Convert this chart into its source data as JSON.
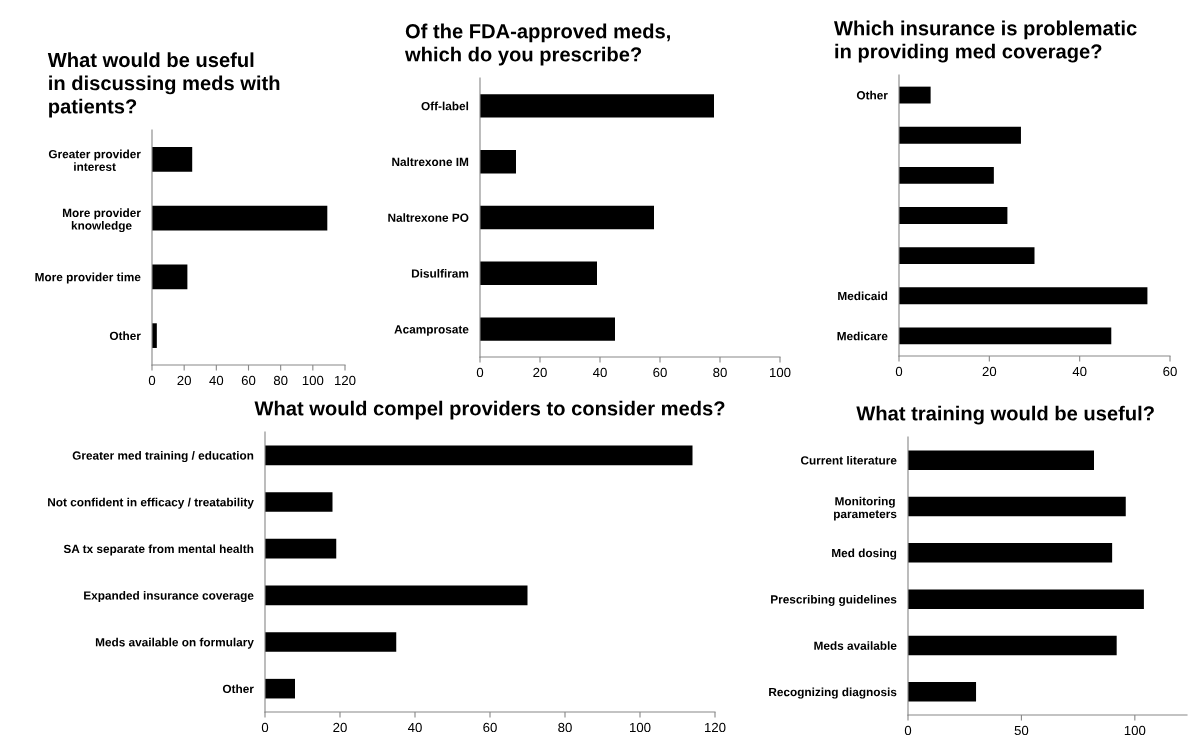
{
  "chart_data": [
    {
      "type": "bar",
      "orientation": "horizontal",
      "title": "What would be useful\nin discussing meds with\npatients?",
      "categories": [
        "Greater provider\ninterest",
        "More provider\nknowledge",
        "More provider time",
        "Other"
      ],
      "values": [
        25,
        109,
        22,
        3
      ],
      "color": "#000000",
      "xlim": [
        0,
        120
      ],
      "xticks": [
        0,
        20,
        40,
        60,
        80,
        100,
        120
      ],
      "grid": false
    },
    {
      "type": "bar",
      "orientation": "horizontal",
      "title": "Of the FDA-approved meds,\nwhich do you prescribe?",
      "categories": [
        "Off-label",
        "Naltrexone IM",
        "Naltrexone PO",
        "Disulfiram",
        "Acamprosate"
      ],
      "values": [
        78,
        12,
        58,
        39,
        45
      ],
      "color": "#000000",
      "xlim": [
        0,
        100
      ],
      "xticks": [
        0,
        20,
        40,
        60,
        80,
        100
      ],
      "grid": false
    },
    {
      "type": "bar",
      "orientation": "horizontal",
      "title": "Which insurance is problematic\nin providing med coverage?",
      "categories": [
        "Other",
        null,
        null,
        null,
        null,
        "Medicaid",
        "Medicare"
      ],
      "values": [
        7,
        27,
        21,
        24,
        30,
        55,
        47
      ],
      "color": "#000000",
      "xlim": [
        0,
        60
      ],
      "xticks": [
        0,
        20,
        40,
        60
      ],
      "grid": false
    },
    {
      "type": "bar",
      "orientation": "horizontal",
      "title": "What would compel providers to consider meds?",
      "categories": [
        "Greater med training / education",
        "Not confident in efficacy / treatability",
        "SA tx separate from mental health",
        "Expanded insurance coverage",
        "Meds available on formulary",
        "Other"
      ],
      "values": [
        114,
        18,
        19,
        70,
        35,
        8
      ],
      "color": "#000000",
      "xlim": [
        0,
        120
      ],
      "xticks": [
        0,
        20,
        40,
        60,
        80,
        100,
        120
      ],
      "grid": false
    },
    {
      "type": "bar",
      "orientation": "horizontal",
      "title": "What training would be useful?",
      "categories": [
        "Current literature",
        "Monitoring\nparameters",
        "Med dosing",
        "Prescribing guidelines",
        "Meds available",
        "Recognizing diagnosis"
      ],
      "values": [
        82,
        96,
        90,
        104,
        92,
        30
      ],
      "color": "#000000",
      "xlim": [
        0,
        123
      ],
      "xticks": [
        0,
        50,
        100
      ],
      "grid": false
    }
  ]
}
